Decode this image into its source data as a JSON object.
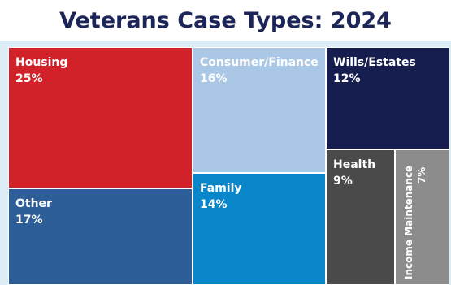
{
  "chart_data": {
    "type": "treemap",
    "title": "Veterans Case Types: 2024",
    "items": [
      {
        "label": "Housing",
        "value": 25,
        "value_label": "25%",
        "color": "#d12229",
        "text_color": "#ffffff"
      },
      {
        "label": "Other",
        "value": 17,
        "value_label": "17%",
        "color": "#2e5e98",
        "text_color": "#ffffff"
      },
      {
        "label": "Consumer/Finance",
        "value": 16,
        "value_label": "16%",
        "color": "#aac8e6",
        "text_color": "#ffffff"
      },
      {
        "label": "Family",
        "value": 14,
        "value_label": "14%",
        "color": "#0a87cb",
        "text_color": "#ffffff"
      },
      {
        "label": "Wills/Estates",
        "value": 12,
        "value_label": "12%",
        "color": "#161d4f",
        "text_color": "#ffffff"
      },
      {
        "label": "Health",
        "value": 9,
        "value_label": "9%",
        "color": "#4a4a4a",
        "text_color": "#ffffff"
      },
      {
        "label": "Income Maintenance",
        "value": 7,
        "value_label": "7%",
        "color": "#8c8c8c",
        "text_color": "#ffffff",
        "label_orientation": "vertical"
      }
    ]
  }
}
